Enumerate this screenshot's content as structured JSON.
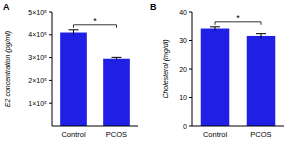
{
  "chart_data": [
    {
      "type": "bar",
      "title": "A",
      "ylabel": "E2 concentration (pg/ml)",
      "categories": [
        "Control",
        "PCOS"
      ],
      "values": [
        410000,
        295000
      ],
      "errors": [
        12000,
        6000
      ],
      "color": "#1f1fe6",
      "annotation": "*",
      "ylim": [
        0,
        500000
      ],
      "yticks": [
        {
          "value": 100000,
          "label": "1×10⁵"
        },
        {
          "value": 200000,
          "label": "2×10⁵"
        },
        {
          "value": 300000,
          "label": "3×10⁵"
        },
        {
          "value": 400000,
          "label": "4×10⁵"
        },
        {
          "value": 500000,
          "label": "5×10⁵"
        }
      ],
      "grid": false
    },
    {
      "type": "bar",
      "title": "B",
      "ylabel": "Cholesterol (mg/dl)",
      "categories": [
        "Control",
        "PCOS"
      ],
      "values": [
        34.2,
        31.6
      ],
      "errors": [
        0.6,
        0.8
      ],
      "color": "#1f1fe6",
      "annotation": "*",
      "ylim": [
        0,
        40
      ],
      "yticks": [
        0,
        10,
        20,
        30,
        40
      ],
      "grid": false
    }
  ]
}
